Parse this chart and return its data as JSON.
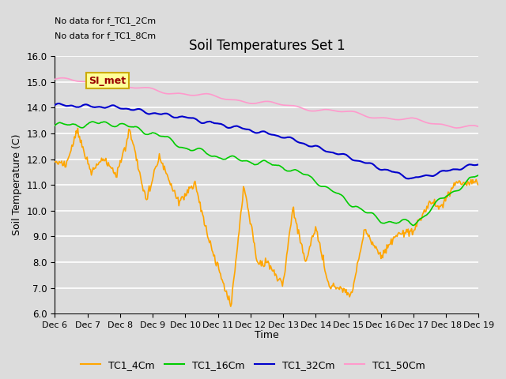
{
  "title": "Soil Temperatures Set 1",
  "ylabel": "Soil Temperature (C)",
  "xlabel": "Time",
  "ylim": [
    6.0,
    16.0
  ],
  "yticks": [
    6.0,
    7.0,
    8.0,
    9.0,
    10.0,
    11.0,
    12.0,
    13.0,
    14.0,
    15.0,
    16.0
  ],
  "xtick_labels": [
    "Dec 6",
    "Dec 7",
    "Dec 8",
    "Dec 9",
    "Dec 10",
    "Dec 11",
    "Dec 12",
    "Dec 13",
    "Dec 14",
    "Dec 15",
    "Dec 16",
    "Dec 17",
    "Dec 18",
    "Dec 19"
  ],
  "colors": {
    "TC1_4Cm": "#FFA500",
    "TC1_16Cm": "#00CC00",
    "TC1_32Cm": "#0000CC",
    "TC1_50Cm": "#FF99CC"
  },
  "legend_labels": [
    "TC1_4Cm",
    "TC1_16Cm",
    "TC1_32Cm",
    "TC1_50Cm"
  ],
  "no_data_text": [
    "No data for f_TC1_2Cm",
    "No data for f_TC1_8Cm"
  ],
  "legend_box_text": "SI_met",
  "legend_box_facecolor": "#FFFF99",
  "legend_box_edgecolor": "#CCAA00",
  "legend_box_textcolor": "#990000",
  "fig_facecolor": "#DCDCDC",
  "plot_facecolor": "#DCDCDC",
  "grid_color": "#FFFFFF",
  "n_points": 500
}
